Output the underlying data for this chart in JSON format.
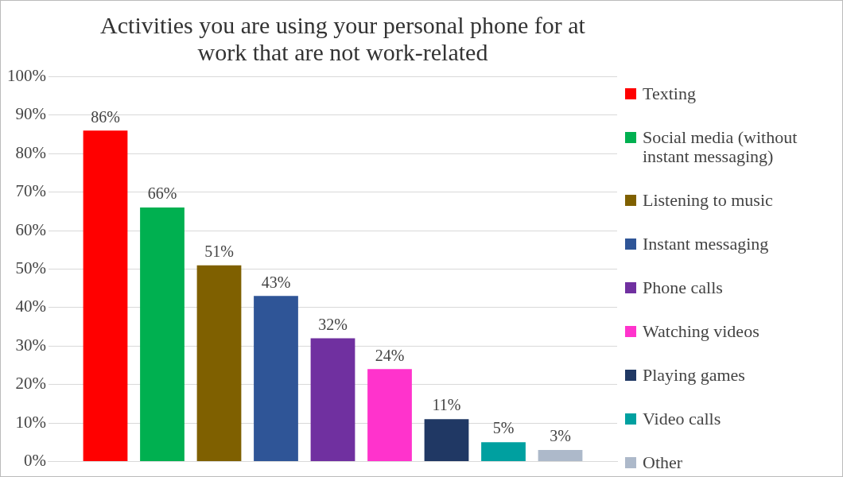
{
  "chart_data": {
    "type": "bar",
    "title": "Activities you are using your personal phone for at work that are not work-related",
    "categories": [
      null
    ],
    "series": [
      {
        "name": "Texting",
        "color": "#ff0000",
        "values": [
          86
        ],
        "value_labels": [
          "86%"
        ]
      },
      {
        "name": "Social media (without instant messaging)",
        "color": "#00b050",
        "values": [
          66
        ],
        "value_labels": [
          "66%"
        ]
      },
      {
        "name": "Listening to music",
        "color": "#7f6000",
        "values": [
          51
        ],
        "value_labels": [
          "51%"
        ]
      },
      {
        "name": "Instant messaging",
        "color": "#2f5597",
        "values": [
          43
        ],
        "value_labels": [
          "43%"
        ]
      },
      {
        "name": "Phone calls",
        "color": "#7030a0",
        "values": [
          32
        ],
        "value_labels": [
          "32%"
        ]
      },
      {
        "name": "Watching videos",
        "color": "#ff33cc",
        "values": [
          24
        ],
        "value_labels": [
          "24%"
        ]
      },
      {
        "name": "Playing games",
        "color": "#203864",
        "values": [
          11
        ],
        "value_labels": [
          "11%"
        ]
      },
      {
        "name": "Video calls",
        "color": "#00a0a0",
        "values": [
          5
        ],
        "value_labels": [
          "5%"
        ]
      },
      {
        "name": "Other",
        "color": "#adb9ca",
        "values": [
          3
        ],
        "value_labels": [
          "3%"
        ]
      }
    ],
    "ylim": [
      0,
      100
    ],
    "yticks": [
      {
        "value": 0,
        "label": "0%"
      },
      {
        "value": 10,
        "label": "10%"
      },
      {
        "value": 20,
        "label": "20%"
      },
      {
        "value": 30,
        "label": "30%"
      },
      {
        "value": 40,
        "label": "40%"
      },
      {
        "value": 50,
        "label": "50%"
      },
      {
        "value": 60,
        "label": "60%"
      },
      {
        "value": 70,
        "label": "70%"
      },
      {
        "value": 80,
        "label": "80%"
      },
      {
        "value": 90,
        "label": "90%"
      },
      {
        "value": 100,
        "label": "100%"
      }
    ],
    "grid": "y",
    "legend": "right"
  }
}
